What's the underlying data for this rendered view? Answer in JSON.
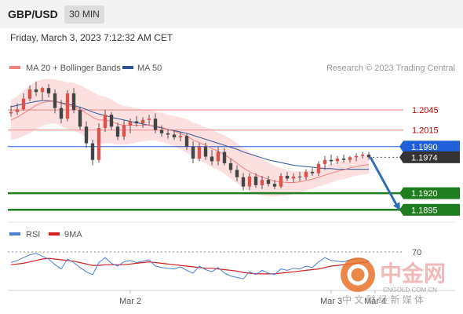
{
  "header": {
    "pair": "GBP/USD",
    "timeframe": "30 MIN",
    "datetime": "Friday, March 3, 2023 7:12:32 AM CET"
  },
  "legend": {
    "items": [
      {
        "label": "MA 20 + Bollinger Bands",
        "color": "#f08080"
      },
      {
        "label": "MA 50",
        "color": "#2f5597"
      }
    ],
    "credit": "Research © 2023 Trading Central"
  },
  "rsi_legend": {
    "items": [
      {
        "label": "RSI",
        "color": "#4a7fd4"
      },
      {
        "label": "9MA",
        "color": "#d42020"
      }
    ]
  },
  "watermark": {
    "brand": "中金网",
    "domain": "CNGOLD.COM.CN",
    "tagline": "中 文 财 经 新 媒 体"
  },
  "colors": {
    "resistance": "#f4a3a3",
    "resistance_text": "#c00000",
    "pivot": "#1f5fd8",
    "support": "#1e7d1e",
    "up_candle": "#d9534f",
    "down_candle": "#444444",
    "arrow": "#2f6db5",
    "band": "#fbd9d9"
  },
  "chart_data": {
    "type": "candlestick",
    "ylim": [
      1.188,
      1.209
    ],
    "price_levels": [
      {
        "value": 1.2045,
        "label": "1.2045",
        "kind": "resistance"
      },
      {
        "value": 1.2015,
        "label": "1.2015",
        "kind": "resistance"
      },
      {
        "value": 1.199,
        "label": "1.1990",
        "kind": "pivot"
      },
      {
        "value": 1.1974,
        "label": "1.1974",
        "kind": "last"
      },
      {
        "value": 1.192,
        "label": "1.1920",
        "kind": "support"
      },
      {
        "value": 1.1895,
        "label": "1.1895",
        "kind": "support"
      }
    ],
    "x_labels": [
      {
        "label": "Mar 2",
        "index": 19
      },
      {
        "label": "Mar 3",
        "index": 51
      },
      {
        "label": "Mar 4",
        "index": 58
      }
    ],
    "candles": [
      [
        1.204,
        1.2052,
        1.2035,
        1.2042
      ],
      [
        1.2042,
        1.2055,
        1.2038,
        1.2046
      ],
      [
        1.2046,
        1.207,
        1.2044,
        1.2062
      ],
      [
        1.2062,
        1.2082,
        1.2058,
        1.2076
      ],
      [
        1.2076,
        1.2088,
        1.2066,
        1.2072
      ],
      [
        1.2072,
        1.208,
        1.206,
        1.2078
      ],
      [
        1.2078,
        1.2084,
        1.2064,
        1.207
      ],
      [
        1.207,
        1.2076,
        1.204,
        1.2048
      ],
      [
        1.2048,
        1.206,
        1.2025,
        1.2032
      ],
      [
        1.2032,
        1.2075,
        1.2028,
        1.207
      ],
      [
        1.207,
        1.2078,
        1.204,
        1.2045
      ],
      [
        1.2045,
        1.205,
        1.2015,
        1.202
      ],
      [
        1.202,
        1.2028,
        1.1988,
        1.1995
      ],
      [
        1.1995,
        1.2,
        1.1962,
        1.197
      ],
      [
        1.197,
        1.2025,
        1.1966,
        1.2018
      ],
      [
        1.2018,
        1.2045,
        1.2012,
        1.2038
      ],
      [
        1.2038,
        1.2042,
        1.2015,
        1.202
      ],
      [
        1.202,
        1.2026,
        1.2,
        1.2005
      ],
      [
        1.2005,
        1.203,
        1.2,
        1.2022
      ],
      [
        1.2022,
        1.2032,
        1.201,
        1.2028
      ],
      [
        1.2028,
        1.2036,
        1.202,
        1.2025
      ],
      [
        1.2025,
        1.2034,
        1.2018,
        1.203
      ],
      [
        1.203,
        1.2038,
        1.2022,
        1.2032
      ],
      [
        1.2032,
        1.204,
        1.201,
        1.2015
      ],
      [
        1.2015,
        1.2022,
        1.2005,
        1.201
      ],
      [
        1.201,
        1.2016,
        1.2002,
        1.2008
      ],
      [
        1.2008,
        1.2014,
        1.2,
        1.2004
      ],
      [
        1.2004,
        1.2012,
        1.1998,
        1.2006
      ],
      [
        1.2006,
        1.201,
        1.1985,
        1.199
      ],
      [
        1.199,
        1.1998,
        1.1965,
        1.1972
      ],
      [
        1.1972,
        1.1995,
        1.1968,
        1.199
      ],
      [
        1.199,
        1.1996,
        1.197,
        1.1975
      ],
      [
        1.1975,
        1.1985,
        1.1962,
        1.1968
      ],
      [
        1.1968,
        1.199,
        1.1962,
        1.1982
      ],
      [
        1.1982,
        1.1988,
        1.1962,
        1.1965
      ],
      [
        1.1965,
        1.1972,
        1.195,
        1.1955
      ],
      [
        1.1955,
        1.1962,
        1.1938,
        1.1944
      ],
      [
        1.1944,
        1.195,
        1.1924,
        1.193
      ],
      [
        1.193,
        1.195,
        1.1925,
        1.1945
      ],
      [
        1.1945,
        1.195,
        1.1928,
        1.1932
      ],
      [
        1.1932,
        1.1946,
        1.1926,
        1.194
      ],
      [
        1.194,
        1.1946,
        1.193,
        1.1934
      ],
      [
        1.1934,
        1.194,
        1.1926,
        1.193
      ],
      [
        1.193,
        1.195,
        1.1927,
        1.1946
      ],
      [
        1.1946,
        1.1952,
        1.1938,
        1.1942
      ],
      [
        1.1942,
        1.195,
        1.1936,
        1.1945
      ],
      [
        1.1945,
        1.1952,
        1.1938,
        1.1944
      ],
      [
        1.1944,
        1.1956,
        1.194,
        1.1952
      ],
      [
        1.1952,
        1.1958,
        1.1946,
        1.195
      ],
      [
        1.195,
        1.1968,
        1.1946,
        1.1964
      ],
      [
        1.1964,
        1.1976,
        1.1955,
        1.197
      ],
      [
        1.197,
        1.1978,
        1.1962,
        1.1968
      ],
      [
        1.1968,
        1.1976,
        1.1964,
        1.1972
      ],
      [
        1.1972,
        1.1978,
        1.1966,
        1.197
      ],
      [
        1.197,
        1.1976,
        1.1966,
        1.1974
      ],
      [
        1.1974,
        1.198,
        1.1968,
        1.1976
      ],
      [
        1.1976,
        1.1982,
        1.1972,
        1.1978
      ],
      [
        1.1978,
        1.1982,
        1.197,
        1.1974
      ]
    ],
    "ma20": [
      1.203,
      1.2034,
      1.204,
      1.2046,
      1.2052,
      1.2056,
      1.2058,
      1.2058,
      1.2055,
      1.2052,
      1.205,
      1.2046,
      1.204,
      1.2034,
      1.203,
      1.203,
      1.2028,
      1.2024,
      1.2022,
      1.2022,
      1.2022,
      1.2022,
      1.2022,
      1.2021,
      1.2019,
      1.2016,
      1.2013,
      1.201,
      1.2006,
      1.2,
      1.1996,
      1.1992,
      1.1987,
      1.1983,
      1.1978,
      1.1972,
      1.1965,
      1.1958,
      1.1952,
      1.1948,
      1.1944,
      1.1941,
      1.1938,
      1.1937,
      1.1936,
      1.1936,
      1.1937,
      1.1939,
      1.1941,
      1.1944,
      1.1947,
      1.195,
      1.1953,
      1.1955,
      1.1958,
      1.196,
      1.1962,
      1.1963
    ],
    "ma50": [
      1.205,
      1.2052,
      1.2054,
      1.2056,
      1.2058,
      1.2059,
      1.2059,
      1.2058,
      1.2056,
      1.2054,
      1.2052,
      1.2049,
      1.2046,
      1.2042,
      1.2039,
      1.2037,
      1.2034,
      1.2032,
      1.203,
      1.2028,
      1.2026,
      1.2024,
      1.2022,
      1.202,
      1.2018,
      1.2016,
      1.2014,
      1.2012,
      1.201,
      1.2007,
      1.2004,
      1.2001,
      1.1998,
      1.1995,
      1.1992,
      1.1989,
      1.1986,
      1.1982,
      1.1979,
      1.1976,
      1.1973,
      1.197,
      1.1968,
      1.1966,
      1.1964,
      1.1962,
      1.1961,
      1.196,
      1.1959,
      1.1958,
      1.1957,
      1.1957,
      1.1956,
      1.1956,
      1.1956,
      1.1956,
      1.1956,
      1.1956
    ],
    "bb_width": [
      0.003,
      0.0032,
      0.0034,
      0.0036,
      0.0036,
      0.0035,
      0.0034,
      0.0033,
      0.0034,
      0.0035,
      0.0036,
      0.0036,
      0.0037,
      0.0038,
      0.0037,
      0.0035,
      0.0033,
      0.0031,
      0.0029,
      0.0028,
      0.0026,
      0.0024,
      0.0023,
      0.0022,
      0.0022,
      0.0022,
      0.0023,
      0.0024,
      0.0025,
      0.0026,
      0.0027,
      0.0027,
      0.0028,
      0.0028,
      0.0029,
      0.003,
      0.003,
      0.003,
      0.003,
      0.0029,
      0.0027,
      0.0025,
      0.0023,
      0.0021,
      0.0019,
      0.0017,
      0.0016,
      0.0015,
      0.0014,
      0.0014,
      0.0014,
      0.0014,
      0.0014,
      0.0014,
      0.0014,
      0.0014,
      0.0014,
      0.0014
    ],
    "forecast_arrow": {
      "from": 1.1974,
      "to": 1.1895
    },
    "rsi": {
      "level": 70,
      "ylim": [
        20,
        80
      ],
      "rsi_values": [
        55,
        58,
        62,
        66,
        68,
        64,
        60,
        52,
        46,
        60,
        55,
        48,
        42,
        38,
        55,
        62,
        54,
        50,
        56,
        58,
        55,
        57,
        59,
        50,
        48,
        47,
        46,
        49,
        44,
        40,
        50,
        45,
        42,
        48,
        40,
        36,
        34,
        32,
        42,
        38,
        44,
        40,
        38,
        46,
        44,
        47,
        46,
        50,
        48,
        56,
        62,
        58,
        57,
        56,
        59,
        60,
        61,
        57
      ],
      "ma9_values": [
        52,
        53,
        54,
        56,
        58,
        60,
        61,
        60,
        59,
        58,
        57,
        55,
        53,
        51,
        51,
        52,
        52,
        52,
        52,
        53,
        54,
        55,
        56,
        55,
        54,
        53,
        52,
        51,
        50,
        49,
        48,
        47,
        47,
        46,
        45,
        44,
        43,
        41,
        40,
        39,
        39,
        39,
        39,
        40,
        41,
        42,
        43,
        44,
        45,
        46,
        48,
        50,
        51,
        52,
        53,
        54,
        55,
        56
      ]
    }
  }
}
